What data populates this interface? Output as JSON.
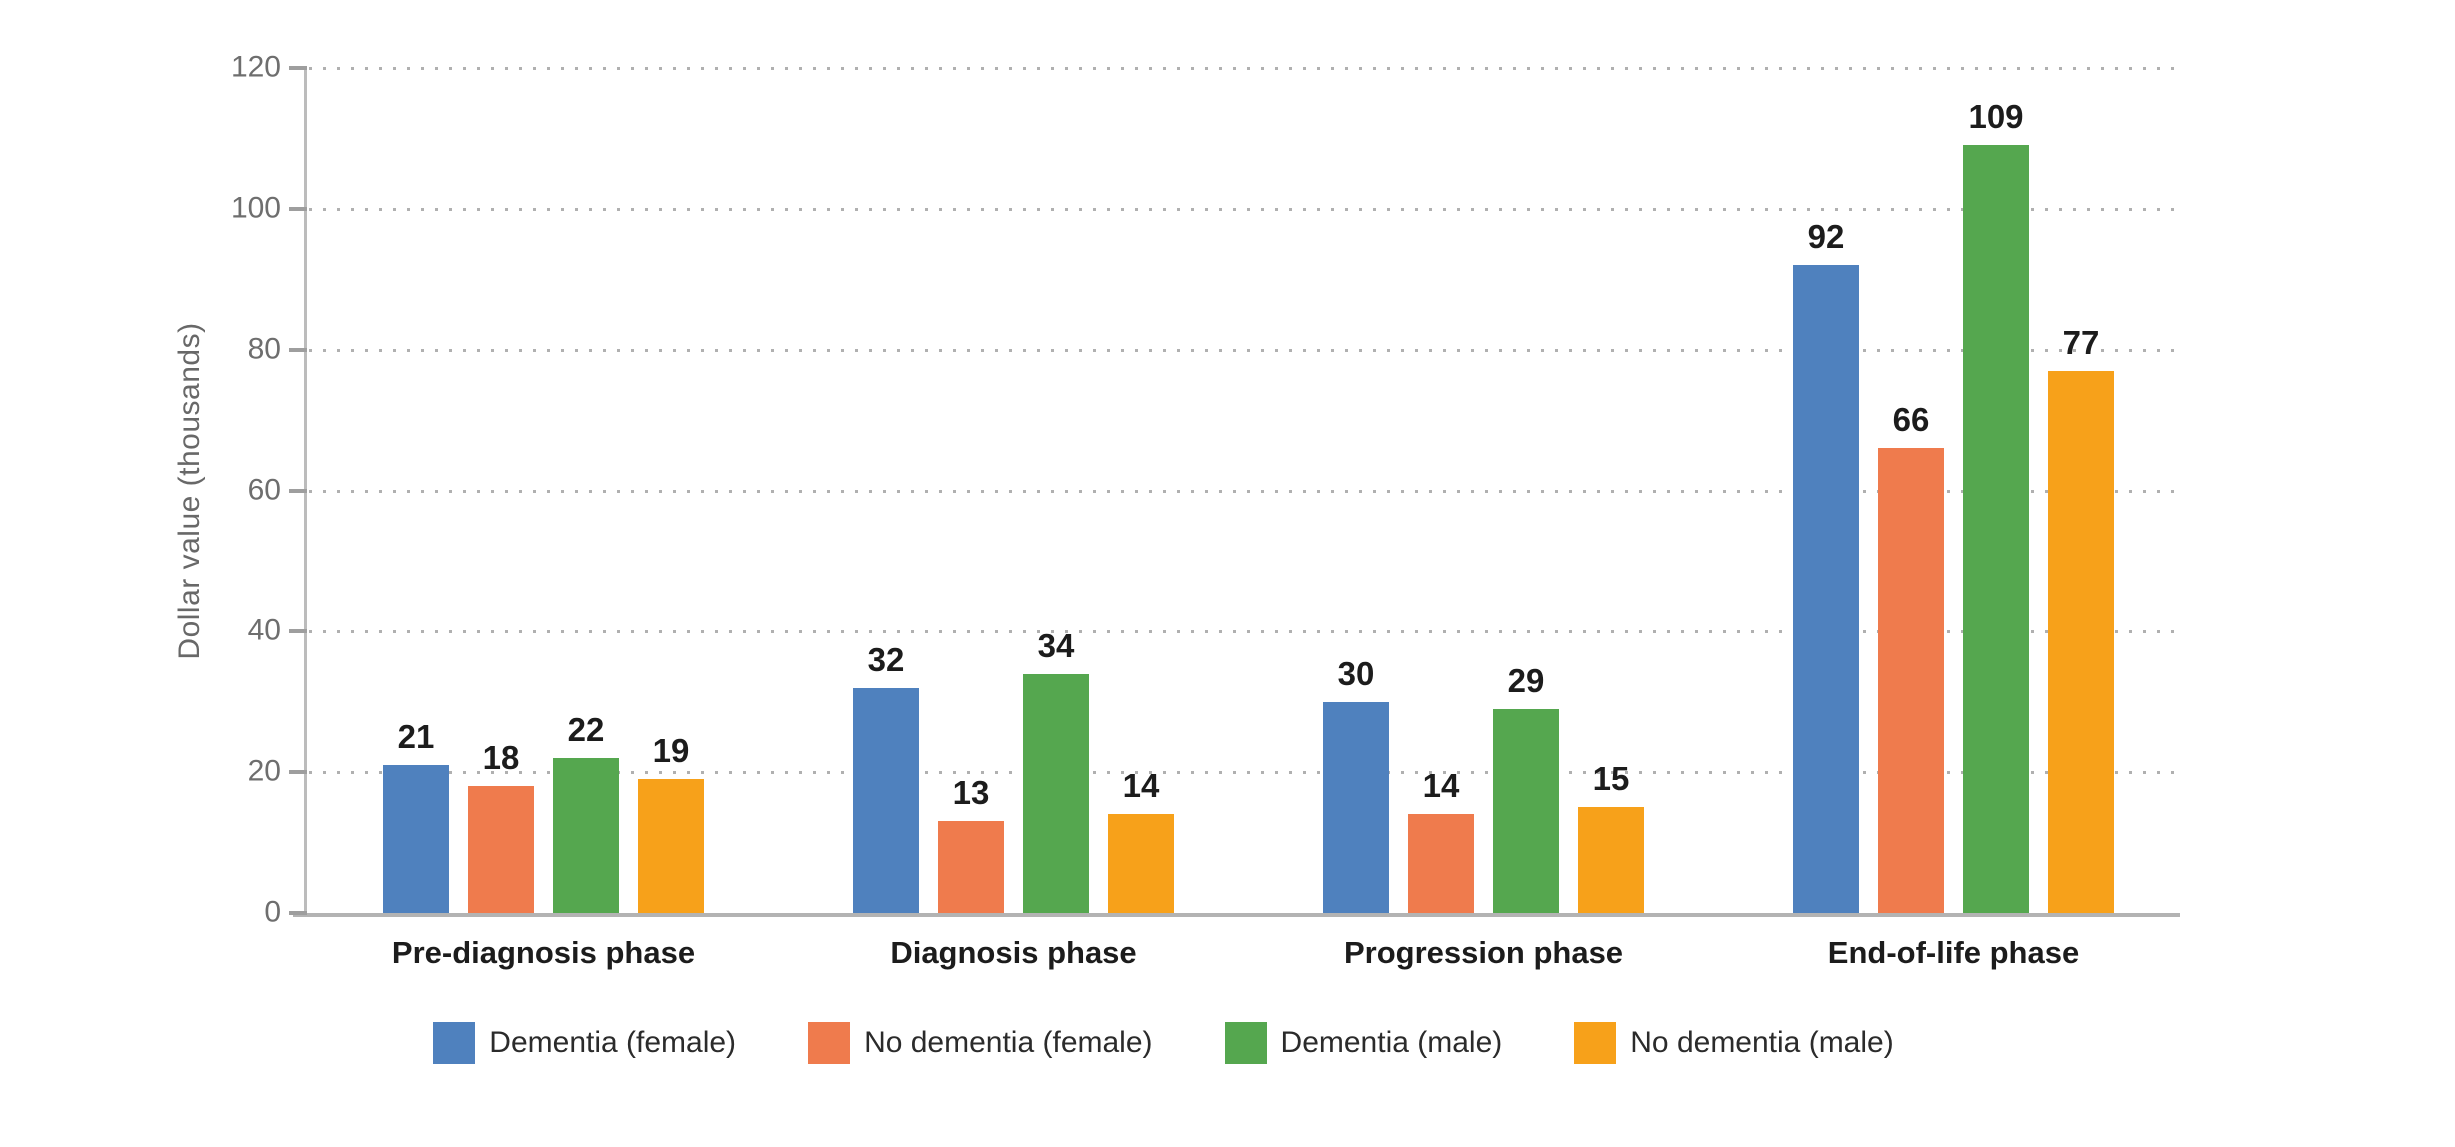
{
  "chart_data": {
    "type": "bar",
    "title": "",
    "xlabel": "",
    "ylabel": "Dollar value (thousands)",
    "categories": [
      "Pre-diagnosis phase",
      "Diagnosis phase",
      "Progression phase",
      "End-of-life phase"
    ],
    "series": [
      {
        "name": "Dementia (female)",
        "color": "#4F81BE",
        "values": [
          21,
          32,
          30,
          92
        ]
      },
      {
        "name": "No dementia (female)",
        "color": "#EF7B4D",
        "values": [
          18,
          13,
          14,
          66
        ]
      },
      {
        "name": "Dementia (male)",
        "color": "#55A74F",
        "values": [
          22,
          34,
          29,
          109
        ]
      },
      {
        "name": "No dementia (male)",
        "color": "#F7A11A",
        "values": [
          19,
          14,
          15,
          77
        ]
      }
    ],
    "ylim": [
      0,
      120
    ],
    "yticks": [
      0,
      20,
      40,
      60,
      80,
      100,
      120
    ],
    "grid": "horizontal dotted",
    "legend_position": "bottom",
    "bar_value_labels": true
  },
  "colors": {
    "axis_line": "#b3b3b3",
    "tick_mark": "#9e9e9e",
    "grid_dots": "#b0b0b0",
    "tick_label": "#6e6e6e",
    "ylabel_text": "#686868",
    "category_label": "#1c1c1c",
    "value_label": "#1c1c1c",
    "legend_label": "#2b2b2b",
    "background": "#ffffff"
  }
}
